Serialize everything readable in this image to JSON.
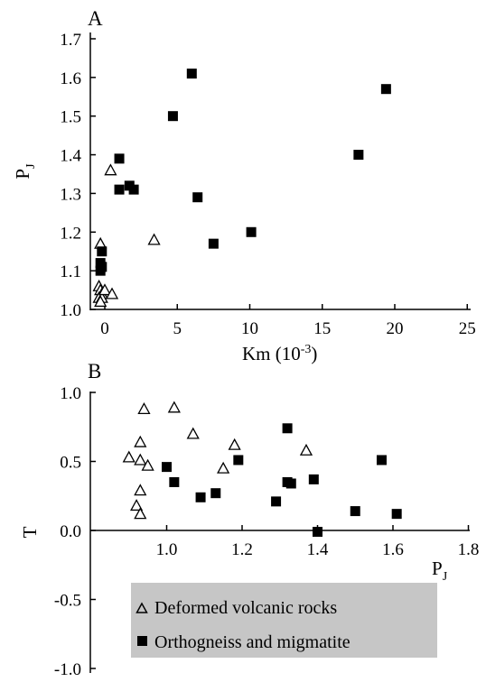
{
  "chart_data": [
    {
      "type": "scatter",
      "panel_label": "A",
      "xlabel": "Km (10",
      "xlabel_exp": "-3",
      "xlabel_close": ")",
      "ylabel": "P",
      "ylabel_sub": "J",
      "xlim": [
        -1,
        25
      ],
      "ylim": [
        1.0,
        1.7
      ],
      "xticks": [
        0,
        5,
        10,
        15,
        20,
        25
      ],
      "xtick_labels": [
        "0",
        "5",
        "10",
        "15",
        "20",
        "25"
      ],
      "yticks": [
        1.0,
        1.1,
        1.2,
        1.3,
        1.4,
        1.5,
        1.6,
        1.7
      ],
      "ytick_labels": [
        "1.0",
        "1.1",
        "1.2",
        "1.3",
        "1.4",
        "1.5",
        "1.6",
        "1.7"
      ],
      "grid": false,
      "series": [
        {
          "name": "Deformed volcanic rocks",
          "marker": "open-triangle",
          "points": [
            [
              -0.3,
              1.17
            ],
            [
              -0.4,
              1.06
            ],
            [
              -0.3,
              1.05
            ],
            [
              -0.2,
              1.04
            ],
            [
              -0.4,
              1.03
            ],
            [
              -0.2,
              1.03
            ],
            [
              -0.3,
              1.02
            ],
            [
              0.0,
              1.05
            ],
            [
              0.5,
              1.04
            ],
            [
              0.4,
              1.36
            ],
            [
              3.4,
              1.18
            ]
          ]
        },
        {
          "name": "Orthogneiss and migmatite",
          "marker": "filled-square",
          "points": [
            [
              -0.2,
              1.15
            ],
            [
              -0.3,
              1.12
            ],
            [
              -0.2,
              1.11
            ],
            [
              -0.3,
              1.1
            ],
            [
              1.0,
              1.39
            ],
            [
              1.0,
              1.31
            ],
            [
              1.7,
              1.32
            ],
            [
              2.0,
              1.31
            ],
            [
              4.7,
              1.5
            ],
            [
              6.0,
              1.61
            ],
            [
              6.4,
              1.29
            ],
            [
              7.5,
              1.17
            ],
            [
              10.1,
              1.2
            ],
            [
              17.5,
              1.4
            ],
            [
              19.4,
              1.57
            ]
          ]
        }
      ]
    },
    {
      "type": "scatter",
      "panel_label": "B",
      "xlabel": "P",
      "xlabel_sub": "J",
      "ylabel": "T",
      "xlim": [
        0.8,
        1.8
      ],
      "ylim": [
        -1.0,
        1.0
      ],
      "xticks": [
        1.0,
        1.2,
        1.4,
        1.6,
        1.8
      ],
      "xtick_labels": [
        "1.0",
        "1.2",
        "1.4",
        "1.6",
        "1.8"
      ],
      "yticks": [
        1.0,
        0.5,
        0.0,
        -0.5,
        -1.0
      ],
      "ytick_labels": [
        "1.0",
        "0.5",
        "0.0",
        "-0.5",
        "-1.0"
      ],
      "grid": false,
      "legend_position": "bottom",
      "series": [
        {
          "name": "Deformed volcanic rocks",
          "marker": "open-triangle",
          "points": [
            [
              0.9,
              0.53
            ],
            [
              0.92,
              0.18
            ],
            [
              0.93,
              0.12
            ],
            [
              0.93,
              0.29
            ],
            [
              0.93,
              0.51
            ],
            [
              0.93,
              0.64
            ],
            [
              0.94,
              0.88
            ],
            [
              0.95,
              0.47
            ],
            [
              1.02,
              0.89
            ],
            [
              1.07,
              0.7
            ],
            [
              1.15,
              0.45
            ],
            [
              1.18,
              0.62
            ],
            [
              1.37,
              0.58
            ]
          ]
        },
        {
          "name": "Orthogneiss and migmatite",
          "marker": "filled-square",
          "points": [
            [
              1.0,
              0.46
            ],
            [
              1.02,
              0.35
            ],
            [
              1.09,
              0.24
            ],
            [
              1.13,
              0.27
            ],
            [
              1.19,
              0.51
            ],
            [
              1.29,
              0.21
            ],
            [
              1.32,
              0.74
            ],
            [
              1.32,
              0.35
            ],
            [
              1.33,
              0.34
            ],
            [
              1.39,
              0.37
            ],
            [
              1.4,
              -0.01
            ],
            [
              1.5,
              0.14
            ],
            [
              1.57,
              0.51
            ],
            [
              1.61,
              0.12
            ]
          ]
        }
      ]
    }
  ],
  "legend": {
    "items": [
      {
        "label": "Deformed volcanic rocks",
        "marker": "open-triangle"
      },
      {
        "label": "Orthogneiss and migmatite",
        "marker": "filled-square"
      }
    ],
    "background": "#c6c6c6"
  },
  "colors": {
    "marker": "#000000",
    "axis": "#000000",
    "legend_bg": "#c6c6c6"
  }
}
